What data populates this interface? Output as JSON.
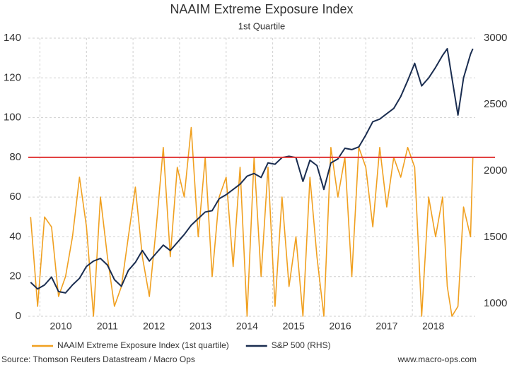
{
  "chart_data": {
    "type": "line",
    "title": "NAAIM Extreme Exposure Index",
    "subtitle": "1st Quartile",
    "source": "Source: Thomson Reuters Datastream / Macro Ops",
    "watermark": "www.macro-ops.com",
    "x": [
      2009.8,
      2009.95,
      2010.1,
      2010.25,
      2010.4,
      2010.55,
      2010.7,
      2010.85,
      2011.0,
      2011.15,
      2011.3,
      2011.45,
      2011.6,
      2011.75,
      2011.9,
      2012.05,
      2012.2,
      2012.35,
      2012.5,
      2012.65,
      2012.8,
      2012.95,
      2013.1,
      2013.25,
      2013.4,
      2013.55,
      2013.7,
      2013.85,
      2014.0,
      2014.15,
      2014.3,
      2014.45,
      2014.6,
      2014.75,
      2014.9,
      2015.05,
      2015.2,
      2015.35,
      2015.5,
      2015.65,
      2015.8,
      2015.95,
      2016.1,
      2016.25,
      2016.4,
      2016.55,
      2016.7,
      2016.85,
      2017.0,
      2017.15,
      2017.3,
      2017.45,
      2017.6,
      2017.75,
      2017.9,
      2018.05,
      2018.2,
      2018.35,
      2018.5,
      2018.65,
      2018.75,
      2018.85,
      2018.98,
      2019.1,
      2019.25,
      2019.3
    ],
    "series": [
      {
        "name": "NAAIM Extreme Exposure Index (1st quartile)",
        "color": "#f0a020",
        "axis": "y",
        "values": [
          50,
          5,
          50,
          45,
          10,
          20,
          40,
          70,
          45,
          0,
          60,
          30,
          5,
          15,
          40,
          65,
          30,
          10,
          45,
          85,
          30,
          75,
          60,
          95,
          40,
          80,
          20,
          60,
          70,
          25,
          75,
          0,
          80,
          20,
          75,
          5,
          60,
          15,
          40,
          0,
          70,
          30,
          0,
          85,
          60,
          80,
          20,
          85,
          75,
          45,
          85,
          55,
          80,
          70,
          85,
          75,
          0,
          60,
          40,
          60,
          15,
          0,
          5,
          55,
          40,
          80
        ]
      },
      {
        "name": "S&P 500 (RHS)",
        "color": "#1a2d50",
        "axis": "y2",
        "values": [
          1160,
          1110,
          1140,
          1200,
          1090,
          1080,
          1140,
          1190,
          1280,
          1320,
          1340,
          1290,
          1180,
          1130,
          1250,
          1310,
          1400,
          1320,
          1380,
          1440,
          1400,
          1460,
          1520,
          1590,
          1640,
          1690,
          1700,
          1790,
          1820,
          1860,
          1900,
          1960,
          1980,
          1950,
          2060,
          2050,
          2100,
          2110,
          2100,
          1920,
          2080,
          2040,
          1860,
          2060,
          2090,
          2170,
          2160,
          2180,
          2270,
          2370,
          2390,
          2430,
          2470,
          2560,
          2680,
          2810,
          2640,
          2700,
          2780,
          2870,
          2920,
          2700,
          2420,
          2700,
          2880,
          2920
        ]
      }
    ],
    "reference_line": {
      "value": 80,
      "color": "#e03535"
    },
    "xlim": [
      2009.75,
      2019.35
    ],
    "xticks": [
      2010,
      2011,
      2012,
      2013,
      2014,
      2015,
      2016,
      2017,
      2018
    ],
    "ylim": [
      0,
      140
    ],
    "yticks": [
      0,
      20,
      40,
      60,
      80,
      100,
      120,
      140
    ],
    "y2lim": [
      904,
      3000
    ],
    "y2ticks": [
      1000,
      1500,
      2000,
      2500,
      3000
    ],
    "grid": true,
    "legend": "bottom"
  }
}
